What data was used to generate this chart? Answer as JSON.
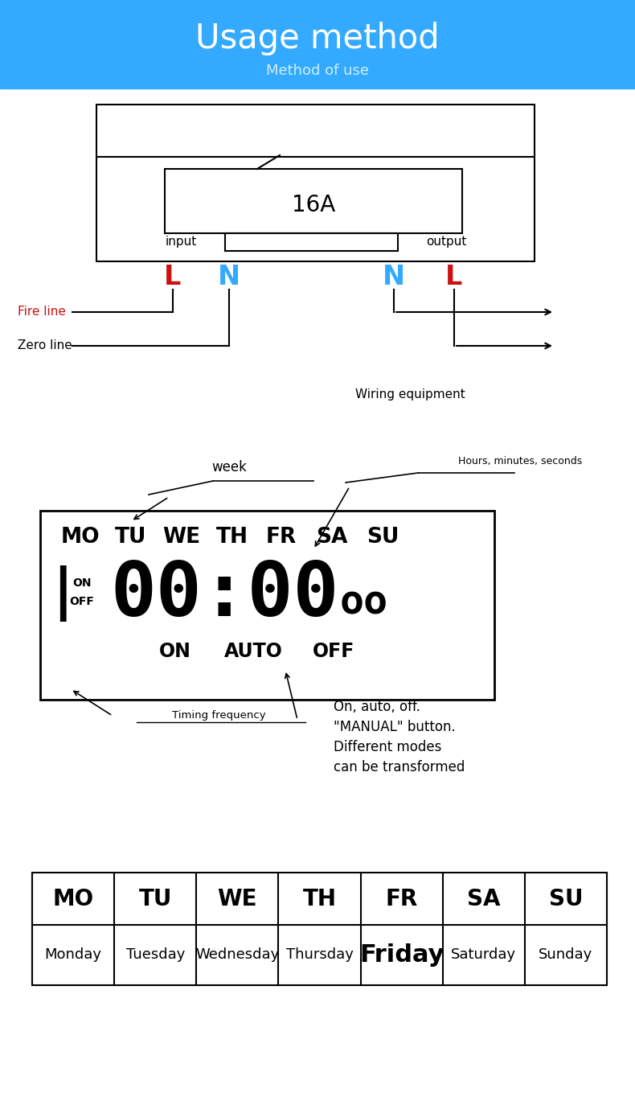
{
  "title": "Usage method",
  "subtitle": "Method of use",
  "header_bg": "#33aaff",
  "bg_color": "#ffffff",
  "title_color": "#ffffff",
  "subtitle_color": "#d0eeff",
  "L_color": "#cc1111",
  "N_color": "#33aaff",
  "fire_line_color": "#cc1111",
  "label_16A": "16A",
  "label_input": "input",
  "label_output": "output",
  "label_fire": "Fire line",
  "label_zero": "Zero line",
  "wiring_eq_text": "Wiring equipment",
  "week_label": "week",
  "hms_label": "Hours, minutes, seconds",
  "timing_label": "Timing frequency",
  "on_auto_off_label": "On, auto, off.\n\"MANUAL\" button.\nDifferent modes\ncan be transformed",
  "days_short": [
    "MO",
    "TU",
    "WE",
    "TH",
    "FR",
    "SA",
    "SU"
  ],
  "days_long": [
    "Monday",
    "Tuesday",
    "Wednesday",
    "Thursday",
    "Friday",
    "Saturday",
    "Sunday"
  ],
  "table_header_fontsize": 20,
  "table_row_fontsize": 13,
  "friday_fontsize": 22
}
